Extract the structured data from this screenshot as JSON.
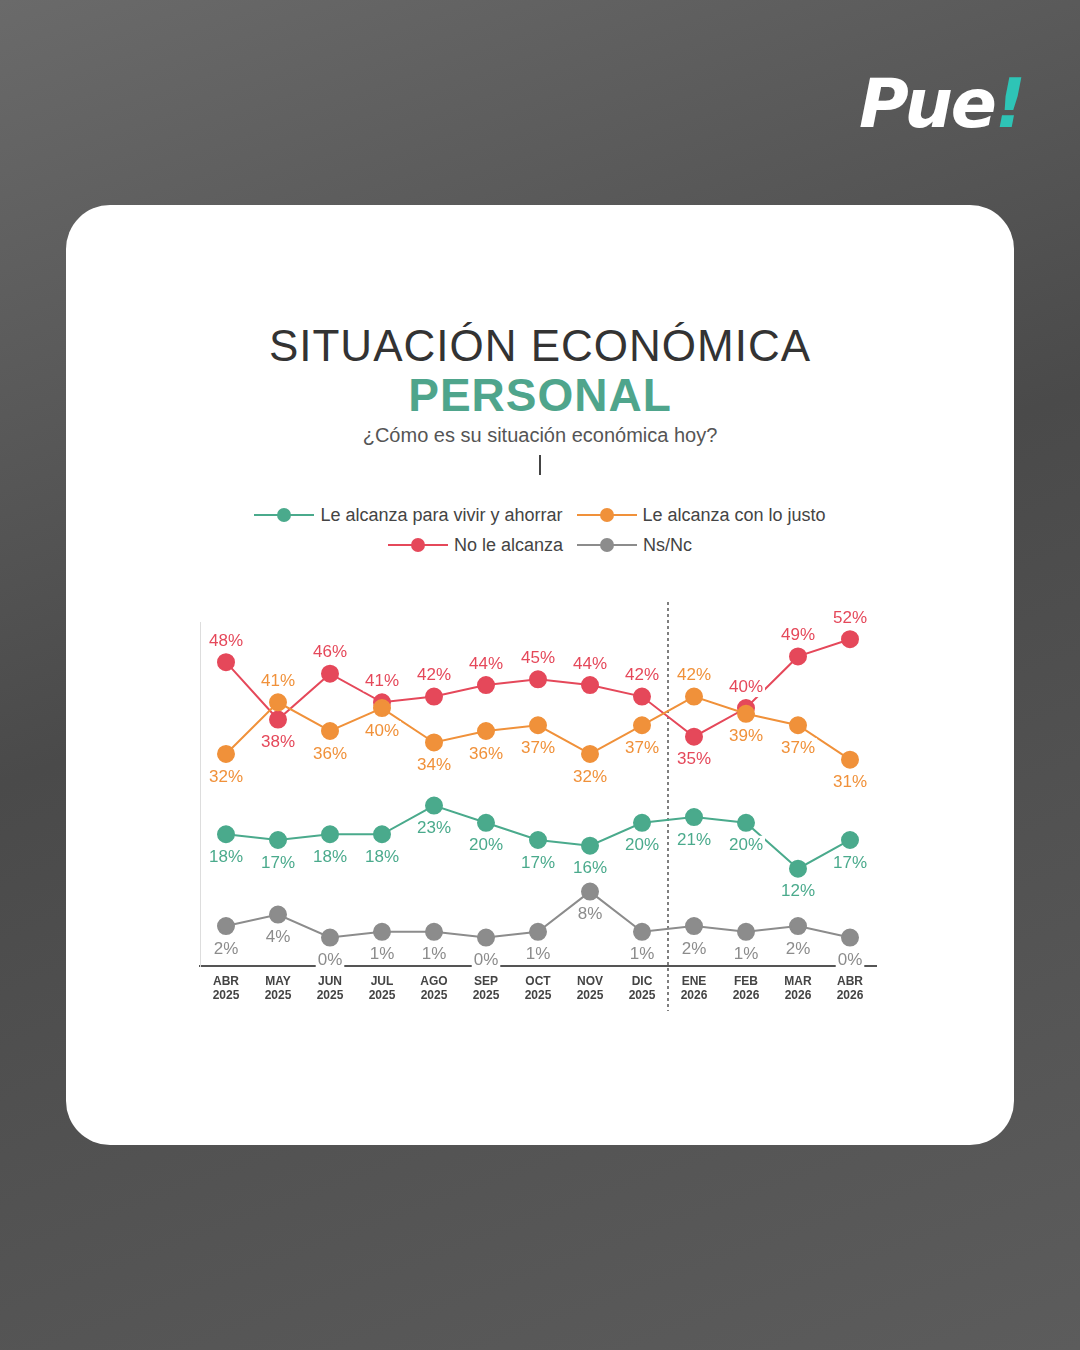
{
  "logo": "Pue!",
  "chart_data": {
    "type": "line",
    "title": [
      "SITUACIÓN ECONÓMICA",
      "PERSONAL"
    ],
    "subtitle": "¿Cómo es su situación económica hoy?",
    "categories": [
      "ABR 2025",
      "MAY 2025",
      "JUN 2025",
      "JUL 2025",
      "AGO 2025",
      "SEP 2025",
      "OCT 2025",
      "NOV 2025",
      "DIC 2025",
      "ENE 2026",
      "FEB 2026",
      "MAR 2026",
      "ABR 2026"
    ],
    "series": [
      {
        "name": "Le alcanza para vivir y ahorrar",
        "color": "#4aaa8c",
        "marker": "circle",
        "line_style": "solid",
        "values": [
          18,
          17,
          18,
          18,
          23,
          20,
          17,
          16,
          20,
          21,
          20,
          12,
          17
        ],
        "value_labels": [
          "18%",
          "17%",
          "18%",
          "18%",
          "23%",
          "20%",
          "17%",
          "16%",
          "20%",
          "21%",
          "20%",
          "12%",
          "17%"
        ]
      },
      {
        "name": "Le alcanza con lo justo",
        "color": "#f0913a",
        "marker": "circle",
        "line_style": "solid",
        "values": [
          32,
          41,
          36,
          40,
          34,
          36,
          37,
          32,
          37,
          42,
          39,
          37,
          31
        ],
        "value_labels": [
          "32%",
          "41%",
          "36%",
          "40%",
          "34%",
          "36%",
          "37%",
          "32%",
          "37%",
          "42%",
          "39%",
          "37%",
          "31%"
        ]
      },
      {
        "name": "No le alcanza",
        "color": "#e5485a",
        "marker": "circle",
        "line_style": "solid",
        "values": [
          48,
          38,
          46,
          41,
          42,
          44,
          45,
          44,
          42,
          35,
          40,
          49,
          52
        ],
        "value_labels": [
          "48%",
          "38%",
          "46%",
          "41%",
          "42%",
          "44%",
          "45%",
          "44%",
          "42%",
          "35%",
          "40%",
          "49%",
          "52%"
        ]
      },
      {
        "name": "Ns/Nc",
        "color": "#8c8c8c",
        "marker": "circle",
        "line_style": "solid",
        "values": [
          2,
          4,
          0,
          1,
          1,
          0,
          1,
          8,
          1,
          2,
          1,
          2,
          0
        ],
        "value_labels": [
          "2%",
          "4%",
          "0%",
          "1%",
          "1%",
          "0%",
          "1%",
          "8%",
          "1%",
          "2%",
          "1%",
          "2%",
          "0%"
        ]
      }
    ],
    "ylim": [
      -5,
      55
    ],
    "grid": false,
    "legend": "top",
    "data_labels": true,
    "tick_labels": "x"
  }
}
